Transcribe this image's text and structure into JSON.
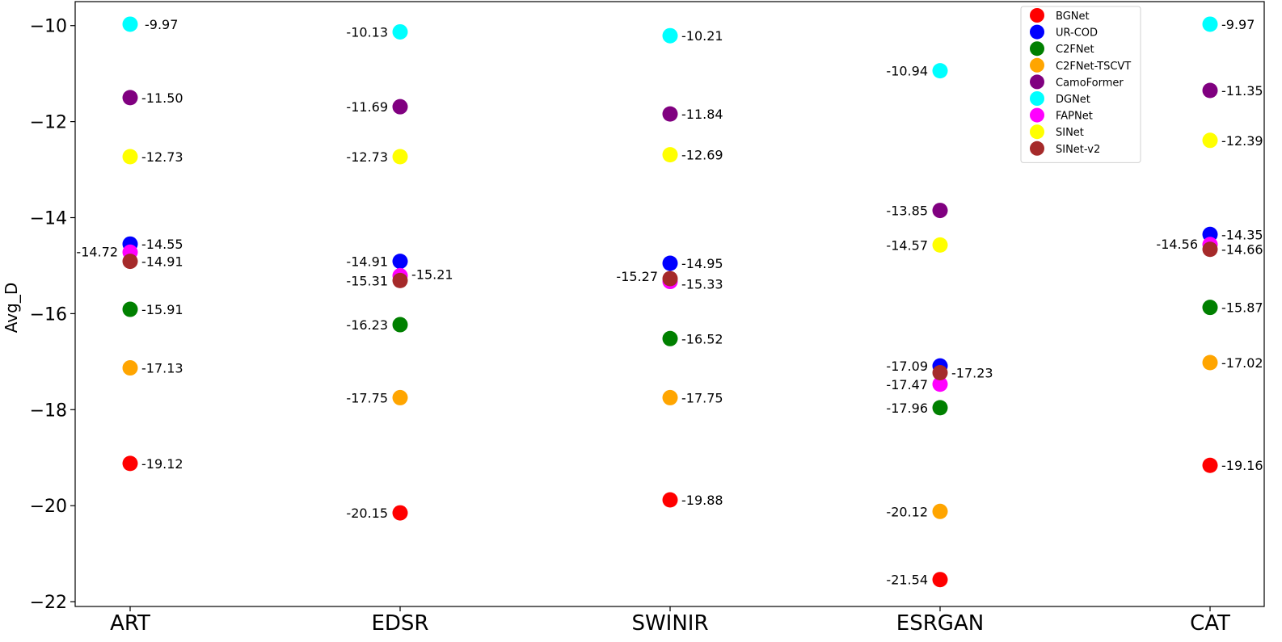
{
  "chart_data": {
    "type": "scatter",
    "ylabel": "Avg_D",
    "xlabel": "",
    "categories": [
      "ART",
      "EDSR",
      "SWINIR",
      "ESRGAN",
      "CAT"
    ],
    "ylim": [
      -22.1,
      -9.5
    ],
    "yticks": [
      -10,
      -12,
      -14,
      -16,
      -18,
      -20,
      -22
    ],
    "ytick_labels": [
      "−10",
      "−12",
      "−14",
      "−16",
      "−18",
      "−20",
      "−22"
    ],
    "grid": false,
    "legend_position": "top-right",
    "series": [
      {
        "name": "BGNet",
        "color": "#ff0000",
        "values": [
          -19.12,
          -20.15,
          -19.88,
          -21.54,
          -19.16
        ],
        "labels": [
          "-19.12",
          "-20.15",
          "-19.88",
          "-21.54",
          "-19.16"
        ]
      },
      {
        "name": "UR-COD",
        "color": "#0000ff",
        "values": [
          -14.55,
          -14.91,
          -14.95,
          -17.09,
          -14.35
        ],
        "labels": [
          "-14.55",
          "-14.91",
          "-14.95",
          "-17.09",
          "-14.35"
        ]
      },
      {
        "name": "C2FNet",
        "color": "#008000",
        "values": [
          -15.91,
          -16.23,
          -16.52,
          -17.96,
          -15.87
        ],
        "labels": [
          "-15.91",
          "-16.23",
          "-16.52",
          "-17.96",
          "-15.87"
        ]
      },
      {
        "name": "C2FNet-TSCVT",
        "color": "#ffa500",
        "values": [
          -17.13,
          -17.75,
          -17.75,
          -20.12,
          -17.02
        ],
        "labels": [
          "-17.13",
          "-17.75",
          "-17.75",
          "-20.12",
          "-17.02"
        ]
      },
      {
        "name": "CamoFormer",
        "color": "#800080",
        "values": [
          -11.5,
          -11.69,
          -11.84,
          -13.85,
          -11.35
        ],
        "labels": [
          "-11.50",
          "-11.69",
          "-11.84",
          "-13.85",
          "-11.35"
        ]
      },
      {
        "name": "DGNet",
        "color": "#00ffff",
        "values": [
          -9.97,
          -10.13,
          -10.21,
          -10.94,
          -9.97
        ],
        "labels": [
          "-9.97",
          "-10.13",
          "-10.21",
          "-10.94",
          "-9.97"
        ]
      },
      {
        "name": "FAPNet",
        "color": "#ff00ff",
        "values": [
          -14.72,
          -15.21,
          -15.33,
          -17.47,
          -14.56
        ],
        "labels": [
          "-14.72",
          "-15.21",
          "-15.33",
          "-17.47",
          "-14.56"
        ]
      },
      {
        "name": "SINet",
        "color": "#ffff00",
        "values": [
          -12.73,
          -12.73,
          -12.69,
          -14.57,
          -12.39
        ],
        "labels": [
          "-12.73",
          "-12.73",
          "-12.69",
          "-14.57",
          "-12.39"
        ]
      },
      {
        "name": "SINet-v2",
        "color": "#a52a2a",
        "values": [
          -14.91,
          -15.31,
          -15.27,
          -17.23,
          -14.66
        ],
        "labels": [
          "-14.91",
          "-15.31",
          "-15.27",
          "-17.23",
          "-14.66"
        ]
      }
    ]
  }
}
